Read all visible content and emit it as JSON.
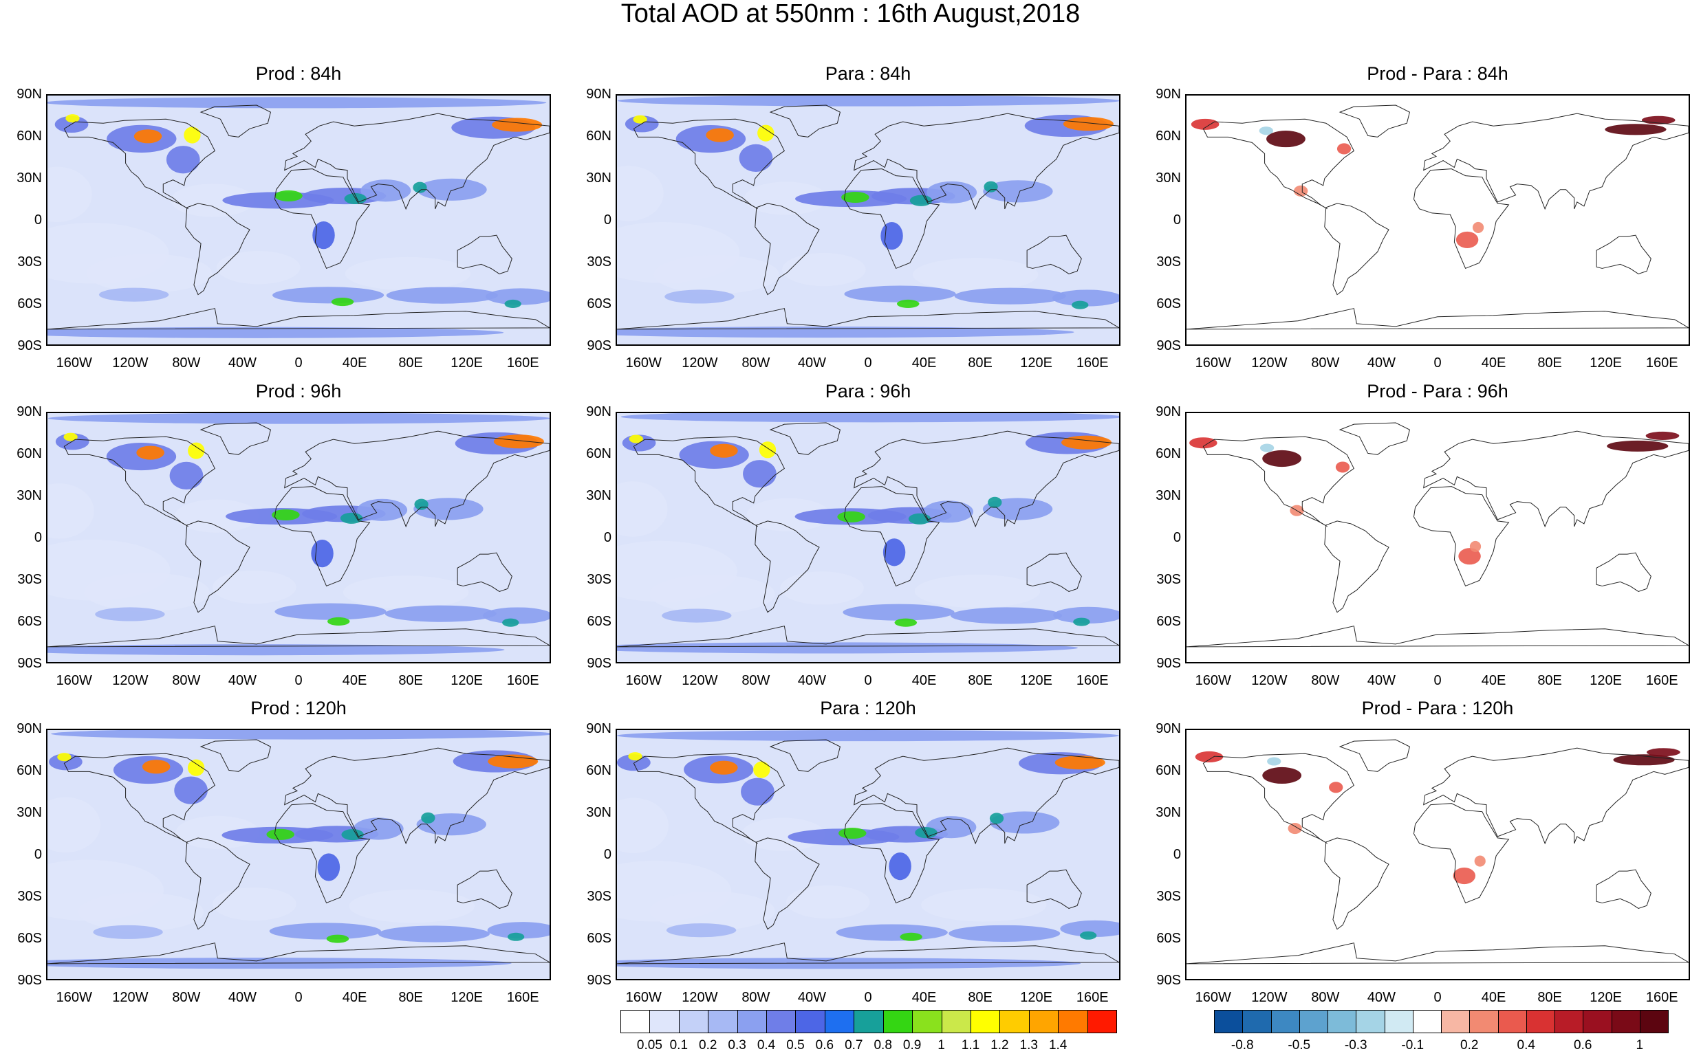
{
  "title": "Total AOD at 550nm : 16th August,2018",
  "lat_ticks": [
    "90N",
    "60N",
    "30N",
    "0",
    "30S",
    "60S",
    "90S"
  ],
  "lon_ticks": [
    "160W",
    "120W",
    "80W",
    "40W",
    "0",
    "40E",
    "80E",
    "120E",
    "160E"
  ],
  "panels": [
    {
      "title": "Prod : 84h",
      "kind": "aod",
      "lead": 84
    },
    {
      "title": "Para : 84h",
      "kind": "aod",
      "lead": 84
    },
    {
      "title": "Prod - Para : 84h",
      "kind": "diff",
      "lead": 84
    },
    {
      "title": "Prod : 96h",
      "kind": "aod",
      "lead": 96
    },
    {
      "title": "Para : 96h",
      "kind": "aod",
      "lead": 96
    },
    {
      "title": "Prod - Para : 96h",
      "kind": "diff",
      "lead": 96
    },
    {
      "title": "Prod : 120h",
      "kind": "aod",
      "lead": 120
    },
    {
      "title": "Para : 120h",
      "kind": "aod",
      "lead": 120
    },
    {
      "title": "Prod - Para : 120h",
      "kind": "diff",
      "lead": 120
    }
  ],
  "colorbar_aod": {
    "labels": [
      "0.05",
      "0.1",
      "0.2",
      "0.3",
      "0.4",
      "0.5",
      "0.6",
      "0.7",
      "0.8",
      "0.9",
      "1",
      "1.1",
      "1.2",
      "1.3",
      "1.4"
    ],
    "colors": [
      "#ffffff",
      "#dfe6fb",
      "#c4d1f8",
      "#a7b9f4",
      "#8ba0f0",
      "#6f7ee8",
      "#4d66e6",
      "#1e6ff0",
      "#17a09a",
      "#34d613",
      "#8ae11d",
      "#cbe84a",
      "#ffff00",
      "#ffcc00",
      "#ffa500",
      "#ff7a00",
      "#ff1a00"
    ]
  },
  "colorbar_diff": {
    "labels": [
      "-0.8",
      "-0.5",
      "-0.3",
      "-0.1",
      "0.2",
      "0.4",
      "0.6",
      "1"
    ],
    "colors": [
      "#0b4f9c",
      "#1f6aae",
      "#3d88c2",
      "#5da2cf",
      "#7dbbd9",
      "#a5d4e6",
      "#d1eaf3",
      "#ffffff",
      "#f7b7a4",
      "#f28a72",
      "#ea5a4e",
      "#d93232",
      "#b81c27",
      "#9a1020",
      "#7a0a17",
      "#5c0510"
    ]
  }
}
